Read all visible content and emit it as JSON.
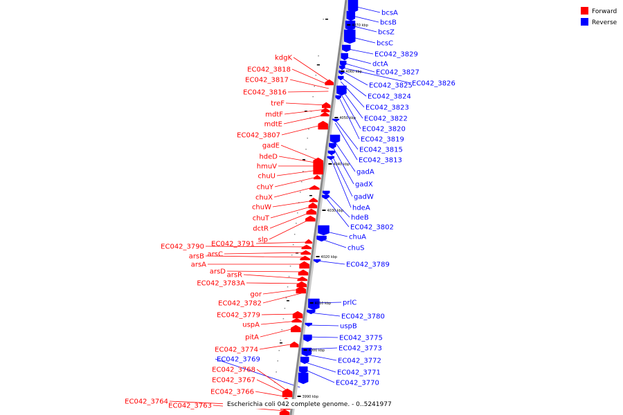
{
  "legend": {
    "forward_label": "Forward",
    "reverse_label": "Reverse",
    "forward_color": "#ff0000",
    "reverse_color": "#0000ff"
  },
  "caption": "Escherichia coli 042 complete genome. - 0..5241977",
  "backbone_color": "#888888",
  "ticks": [
    "4070 kbp",
    "4060 kbp",
    "4050 kbp",
    "4040 kbp",
    "4030 kbp",
    "4020 kbp",
    "4010 kbp",
    "4000 kbp",
    "3990 kbp"
  ],
  "genes": {
    "reverse": [
      "bcsA",
      "bcsB",
      "bcsZ",
      "bcsC",
      "EC042_3829",
      "dctA",
      "EC042_3827",
      "EC042_3826",
      "EC042_3825",
      "EC042_3824",
      "EC042_3823",
      "EC042_3822",
      "EC042_3820",
      "EC042_3819",
      "EC042_3815",
      "EC042_3813",
      "gadA",
      "gadX",
      "gadW",
      "hdeA",
      "hdeB",
      "EC042_3802",
      "chuA",
      "chuS",
      "EC042_3789",
      "prlC",
      "EC042_3780",
      "uspB",
      "EC042_3775",
      "EC042_3773",
      "EC042_3772",
      "EC042_3771",
      "EC042_3770",
      "EC042_3769"
    ],
    "forward": [
      "kdgK",
      "EC042_3818",
      "EC042_3817",
      "EC042_3816",
      "treF",
      "mdtF",
      "mdtE",
      "EC042_3807",
      "gadE",
      "hdeD",
      "hmuV",
      "chuU",
      "chuY",
      "chuX",
      "chuW",
      "chuT",
      "dctR",
      "slp",
      "EC042_3791",
      "EC042_3790",
      "arsC",
      "arsB",
      "arsA",
      "arsD",
      "arsR",
      "EC042_3783A",
      "gor",
      "EC042_3782",
      "EC042_3779",
      "uspA",
      "pitA",
      "EC042_3774",
      "EC042_3768",
      "EC042_3767",
      "EC042_3766",
      "EC042_3764",
      "EC042_3763"
    ]
  }
}
